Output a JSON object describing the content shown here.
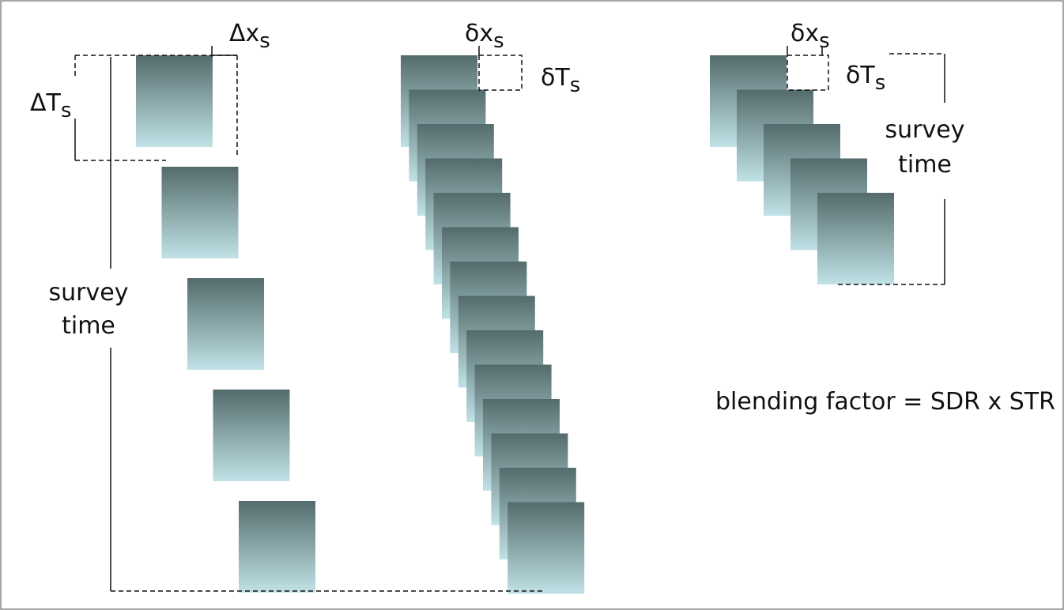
{
  "labels": {
    "left_dx_symbol": "Δx",
    "left_dx_sub": "s",
    "left_dT_symbol": "ΔT",
    "left_dT_sub": "s",
    "left_survey": "survey",
    "left_time": "time",
    "mid_dx_symbol": "δx",
    "mid_dx_sub": "s",
    "mid_dT_symbol": "δT",
    "mid_dT_sub": "s",
    "right_dx_symbol": "δx",
    "right_dx_sub": "s",
    "right_dT_symbol": "δT",
    "right_dT_sub": "s",
    "right_survey": "survey",
    "right_time": "time",
    "formula": "blending factor = SDR x STR"
  },
  "colors": {
    "shot_top": "#546b6c",
    "shot_bottom": "#c0e2e6",
    "line": "#111111",
    "border": "#888888"
  },
  "groups": {
    "conventional_shots": 5,
    "blended_dense_shots": 14,
    "blended_subset_shots": 5
  }
}
